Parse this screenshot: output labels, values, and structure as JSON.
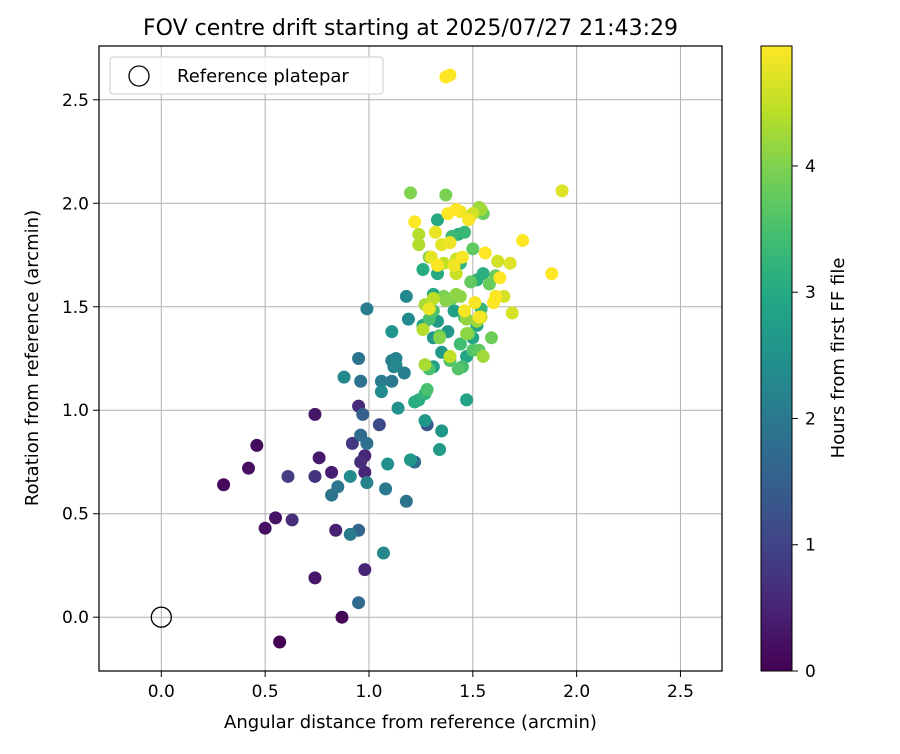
{
  "chart_data": {
    "type": "scatter",
    "title": "FOV centre drift starting at 2025/07/27 21:43:29",
    "xlabel": "Angular distance from reference (arcmin)",
    "ylabel": "Rotation from reference (arcmin)",
    "xlim": [
      -0.3,
      2.7
    ],
    "ylim": [
      -0.26,
      2.76
    ],
    "x_ticks": [
      0.0,
      0.5,
      1.0,
      1.5,
      2.0,
      2.5
    ],
    "x_tick_labels": [
      "0.0",
      "0.5",
      "1.0",
      "1.5",
      "2.0",
      "2.5"
    ],
    "y_ticks": [
      0.0,
      0.5,
      1.0,
      1.5,
      2.0,
      2.5
    ],
    "y_tick_labels": [
      "0.0",
      "0.5",
      "1.0",
      "1.5",
      "2.0",
      "2.5"
    ],
    "grid": true,
    "legend": {
      "location": "upper-left",
      "entries": [
        "Reference platepar"
      ]
    },
    "reference_point": {
      "x": 0.0,
      "y": 0.0,
      "marker": "open-circle"
    },
    "colorbar": {
      "label": "Hours from first FF file",
      "min": 0,
      "max": 4.95,
      "ticks": [
        0,
        1,
        2,
        3,
        4
      ],
      "tick_labels": [
        "0",
        "1",
        "2",
        "3",
        "4"
      ],
      "colormap": "viridis"
    },
    "series": [
      {
        "points": [
          [
            0.57,
            -0.12,
            0.0
          ],
          [
            0.87,
            0.0,
            0.05
          ],
          [
            0.3,
            0.64,
            0.1
          ],
          [
            0.46,
            0.83,
            0.15
          ],
          [
            0.42,
            0.72,
            0.2
          ],
          [
            0.5,
            0.43,
            0.2
          ],
          [
            0.55,
            0.48,
            0.25
          ],
          [
            0.74,
            0.98,
            0.3
          ],
          [
            0.74,
            0.19,
            0.3
          ],
          [
            0.76,
            0.77,
            0.35
          ],
          [
            0.82,
            0.7,
            0.4
          ],
          [
            0.84,
            0.42,
            0.45
          ],
          [
            0.98,
            0.23,
            0.5
          ],
          [
            0.98,
            0.7,
            0.5
          ],
          [
            0.98,
            0.78,
            0.55
          ],
          [
            0.95,
            1.02,
            0.6
          ],
          [
            0.96,
            0.75,
            0.65
          ],
          [
            0.63,
            0.47,
            0.65
          ],
          [
            0.74,
            0.68,
            0.75
          ],
          [
            0.92,
            0.84,
            0.8
          ],
          [
            0.61,
            0.68,
            0.9
          ],
          [
            1.05,
            0.93,
            1.1
          ],
          [
            0.97,
            0.98,
            1.5
          ],
          [
            0.95,
            0.42,
            1.6
          ],
          [
            0.95,
            0.07,
            1.7
          ],
          [
            0.96,
            0.88,
            1.75
          ],
          [
            0.99,
            0.84,
            1.8
          ],
          [
            1.22,
            0.75,
            1.85
          ],
          [
            1.18,
            0.56,
            1.9
          ],
          [
            0.82,
            0.59,
            1.9
          ],
          [
            0.85,
            0.63,
            1.95
          ],
          [
            0.91,
            0.4,
            2.05
          ],
          [
            0.99,
            0.65,
            2.15
          ],
          [
            1.07,
            0.31,
            2.3
          ],
          [
            1.08,
            0.62,
            2.0
          ],
          [
            0.95,
            1.25,
            1.9
          ],
          [
            0.96,
            1.14,
            1.9
          ],
          [
            0.99,
            1.49,
            2.05
          ],
          [
            1.06,
            1.14,
            2.1
          ],
          [
            1.11,
            1.24,
            2.15
          ],
          [
            1.12,
            1.21,
            2.2
          ],
          [
            1.11,
            1.14,
            2.0
          ],
          [
            1.17,
            1.18,
            2.1
          ],
          [
            1.13,
            1.25,
            2.2
          ],
          [
            1.18,
            1.55,
            2.3
          ],
          [
            1.19,
            1.44,
            2.35
          ],
          [
            1.13,
            1.22,
            2.3
          ],
          [
            0.88,
            1.16,
            2.3
          ],
          [
            1.06,
            1.09,
            2.35
          ],
          [
            0.91,
            0.68,
            2.4
          ],
          [
            1.09,
            0.74,
            2.45
          ],
          [
            1.14,
            1.01,
            2.5
          ],
          [
            1.11,
            1.38,
            2.55
          ],
          [
            1.2,
            0.76,
            2.6
          ],
          [
            1.28,
            0.93,
            1.3
          ],
          [
            1.27,
            0.95,
            2.6
          ],
          [
            1.35,
            0.9,
            2.6
          ],
          [
            1.34,
            0.81,
            2.7
          ],
          [
            1.22,
            1.04,
            3.1
          ],
          [
            1.24,
            1.05,
            3.1
          ],
          [
            1.27,
            1.08,
            3.2
          ],
          [
            1.31,
            1.21,
            2.8
          ],
          [
            1.31,
            1.35,
            2.6
          ],
          [
            1.33,
            1.43,
            2.7
          ],
          [
            1.35,
            1.28,
            2.65
          ],
          [
            1.38,
            1.38,
            2.6
          ],
          [
            1.44,
            1.32,
            2.75
          ],
          [
            1.41,
            1.48,
            2.8
          ],
          [
            1.47,
            1.05,
            2.85
          ],
          [
            1.47,
            1.26,
            2.9
          ],
          [
            1.5,
            1.35,
            2.9
          ],
          [
            1.52,
            1.41,
            2.85
          ],
          [
            1.26,
            1.41,
            2.95
          ],
          [
            1.31,
            1.56,
            3.0
          ],
          [
            1.33,
            1.66,
            3.0
          ],
          [
            1.33,
            1.92,
            3.0
          ],
          [
            1.26,
            1.68,
            3.05
          ],
          [
            1.43,
            1.85,
            3.1
          ],
          [
            1.52,
            1.63,
            3.1
          ],
          [
            1.55,
            1.66,
            3.1
          ],
          [
            1.44,
            1.71,
            3.2
          ],
          [
            1.54,
            1.49,
            3.3
          ],
          [
            1.46,
            1.86,
            3.3
          ],
          [
            1.4,
            1.84,
            3.35
          ],
          [
            1.46,
            1.45,
            3.4
          ],
          [
            1.44,
            1.32,
            3.4
          ],
          [
            1.45,
            1.21,
            3.45
          ],
          [
            1.28,
            1.1,
            3.5
          ],
          [
            1.29,
            1.2,
            3.5
          ],
          [
            1.29,
            1.44,
            3.5
          ],
          [
            1.31,
            1.48,
            3.55
          ],
          [
            1.34,
            1.36,
            3.6
          ],
          [
            1.39,
            1.24,
            3.6
          ],
          [
            1.43,
            1.2,
            3.6
          ],
          [
            1.5,
            1.29,
            3.6
          ],
          [
            1.53,
            1.29,
            3.7
          ],
          [
            1.5,
            1.78,
            3.7
          ],
          [
            1.49,
            1.62,
            3.75
          ],
          [
            1.55,
            1.95,
            3.8
          ],
          [
            1.58,
            1.61,
            3.8
          ],
          [
            1.61,
            1.65,
            3.8
          ],
          [
            1.59,
            1.35,
            3.85
          ],
          [
            1.48,
            1.37,
            3.85
          ],
          [
            1.4,
            1.54,
            3.9
          ],
          [
            1.36,
            1.55,
            3.95
          ],
          [
            1.37,
            2.04,
            3.95
          ],
          [
            1.2,
            2.05,
            4.0
          ],
          [
            1.29,
            1.74,
            4.0
          ],
          [
            1.34,
            1.35,
            4.05
          ],
          [
            1.37,
            1.53,
            4.05
          ],
          [
            1.42,
            1.56,
            4.1
          ],
          [
            1.44,
            1.55,
            4.1
          ],
          [
            1.47,
            1.37,
            4.1
          ],
          [
            1.47,
            1.44,
            4.15
          ],
          [
            1.52,
            1.43,
            4.2
          ],
          [
            1.53,
            1.98,
            4.2
          ],
          [
            1.54,
            1.97,
            4.25
          ],
          [
            1.55,
            1.26,
            4.25
          ],
          [
            1.27,
            1.22,
            4.3
          ],
          [
            1.27,
            1.51,
            4.3
          ],
          [
            1.24,
            1.8,
            4.35
          ],
          [
            1.24,
            1.85,
            4.4
          ],
          [
            1.26,
            1.39,
            4.4
          ],
          [
            1.31,
            1.54,
            4.45
          ],
          [
            1.36,
            1.71,
            4.5
          ],
          [
            1.39,
            1.26,
            4.5
          ],
          [
            1.42,
            1.66,
            4.55
          ],
          [
            1.42,
            1.73,
            4.55
          ],
          [
            1.5,
            1.95,
            4.6
          ],
          [
            1.54,
            1.45,
            4.6
          ],
          [
            1.62,
            1.72,
            4.6
          ],
          [
            1.65,
            1.55,
            4.65
          ],
          [
            1.69,
            1.47,
            4.65
          ],
          [
            1.68,
            1.71,
            4.7
          ],
          [
            1.93,
            2.06,
            4.7
          ],
          [
            1.35,
            1.8,
            4.75
          ],
          [
            1.3,
            1.74,
            4.75
          ],
          [
            1.29,
            1.49,
            4.8
          ],
          [
            1.32,
            1.86,
            4.8
          ],
          [
            1.39,
            1.81,
            4.85
          ],
          [
            1.41,
            1.7,
            4.85
          ],
          [
            1.44,
            1.96,
            4.85
          ],
          [
            1.48,
            1.92,
            4.9
          ],
          [
            1.45,
            1.74,
            4.9
          ],
          [
            1.46,
            1.48,
            4.9
          ],
          [
            1.51,
            1.52,
            4.9
          ],
          [
            1.53,
            1.45,
            4.9
          ],
          [
            1.56,
            1.76,
            4.95
          ],
          [
            1.6,
            1.52,
            4.95
          ],
          [
            1.61,
            1.55,
            4.95
          ],
          [
            1.63,
            1.64,
            4.95
          ],
          [
            1.74,
            1.82,
            4.95
          ],
          [
            1.88,
            1.66,
            4.95
          ],
          [
            1.22,
            1.91,
            4.95
          ],
          [
            1.38,
            1.95,
            4.95
          ],
          [
            1.39,
            2.62,
            4.95
          ],
          [
            1.37,
            2.61,
            4.95
          ],
          [
            1.42,
            1.97,
            4.95
          ],
          [
            1.33,
            1.7,
            4.95
          ]
        ]
      }
    ]
  }
}
